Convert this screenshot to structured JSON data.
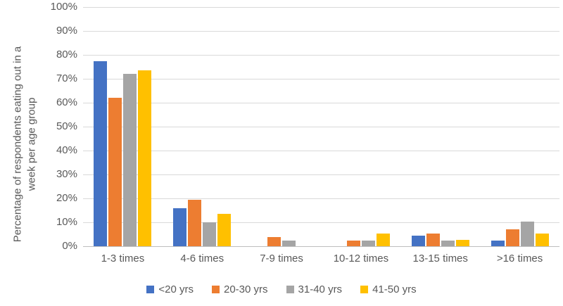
{
  "chart_data": {
    "type": "bar",
    "title": "",
    "xlabel": "",
    "ylabel": "Percentage of respondents eating out in a week per age group",
    "ylabel_lines": [
      "Percentage of respondents eating out in a",
      "week per age group"
    ],
    "ylim": [
      0,
      100
    ],
    "ytick_step": 10,
    "ytick_labels": [
      "0%",
      "10%",
      "20%",
      "30%",
      "40%",
      "50%",
      "60%",
      "70%",
      "80%",
      "90%",
      "100%"
    ],
    "categories": [
      "1-3 times",
      "4-6 times",
      "7-9 times",
      "10-12 times",
      "13-15 times",
      ">16 times"
    ],
    "series": [
      {
        "name": "<20 yrs",
        "color": "#4472C4",
        "values": [
          77.5,
          16,
          0,
          0,
          4.5,
          2.3
        ]
      },
      {
        "name": "20-30 yrs",
        "color": "#ED7D31",
        "values": [
          62,
          19.5,
          3.8,
          2.5,
          5.3,
          7
        ]
      },
      {
        "name": "31-40 yrs",
        "color": "#A5A5A5",
        "values": [
          72,
          10,
          2.5,
          2.5,
          2.5,
          10.3
        ]
      },
      {
        "name": "41-50 yrs",
        "color": "#FFC000",
        "values": [
          73.5,
          13.5,
          0,
          5.4,
          2.7,
          5.3
        ]
      }
    ],
    "legend_position": "bottom",
    "grid": true,
    "gridline_color": "#D9D9D9",
    "axis_line_color": "#BFBFBF",
    "text_color": "#595959"
  }
}
